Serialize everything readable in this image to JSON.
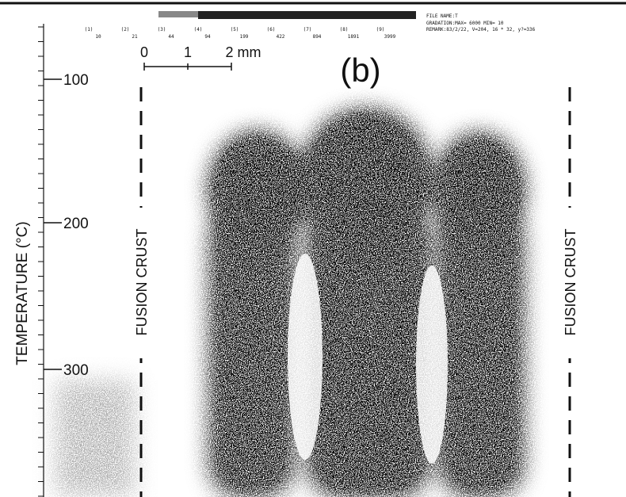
{
  "header": {
    "file_name": "FILE NAME:T",
    "gradation": "GRADATION:MAX= 6000  MIN= 10",
    "remark": "REMARK:83/2/22, V=204, 16 * 32, y?=336",
    "scale_indices": [
      "(1)",
      "(2)",
      "(3)",
      "(4)",
      "(5)",
      "(6)",
      "(7)",
      "(8)",
      "(9)"
    ],
    "scale_values": [
      "10",
      "21",
      "44",
      "94",
      "199",
      "422",
      "894",
      "1891",
      "3999"
    ]
  },
  "scale_bar": {
    "labels": [
      "0",
      "1",
      "2 mm"
    ]
  },
  "panel_label": "(b)",
  "axis": {
    "title": "TEMPERATURE (°C)",
    "ticks": [
      "100",
      "200",
      "300"
    ]
  },
  "annotations": {
    "left": "FUSION CRUST",
    "right": "FUSION CRUST"
  }
}
